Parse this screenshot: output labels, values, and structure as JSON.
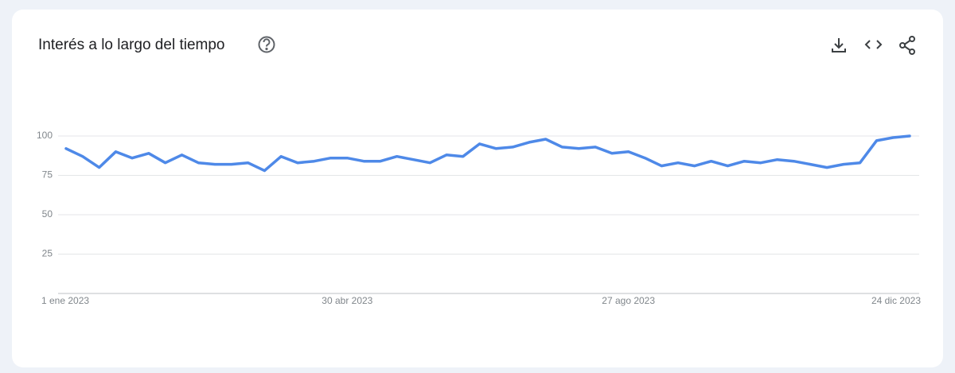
{
  "chart_data": {
    "type": "line",
    "title": "Interés a lo largo del tiempo",
    "categories": [
      "1 ene 2023",
      null,
      null,
      null,
      null,
      null,
      null,
      null,
      null,
      null,
      null,
      null,
      null,
      null,
      null,
      null,
      null,
      "30 abr 2023",
      null,
      null,
      null,
      null,
      null,
      null,
      null,
      null,
      null,
      null,
      null,
      null,
      null,
      null,
      null,
      null,
      "27 ago 2023",
      null,
      null,
      null,
      null,
      null,
      null,
      null,
      null,
      null,
      null,
      null,
      null,
      null,
      null,
      null,
      null,
      "24 dic 2023"
    ],
    "values": [
      92,
      87,
      80,
      90,
      86,
      89,
      83,
      88,
      83,
      82,
      82,
      83,
      78,
      87,
      83,
      84,
      86,
      86,
      84,
      84,
      87,
      85,
      83,
      88,
      87,
      95,
      92,
      93,
      96,
      98,
      93,
      92,
      93,
      89,
      90,
      86,
      81,
      83,
      81,
      84,
      81,
      84,
      83,
      85,
      84,
      82,
      80,
      82,
      83,
      97,
      99,
      100
    ],
    "color": "#4e89e8",
    "ylim": [
      0,
      100
    ],
    "yticks": [
      25,
      50,
      75,
      100
    ],
    "grid": true
  }
}
